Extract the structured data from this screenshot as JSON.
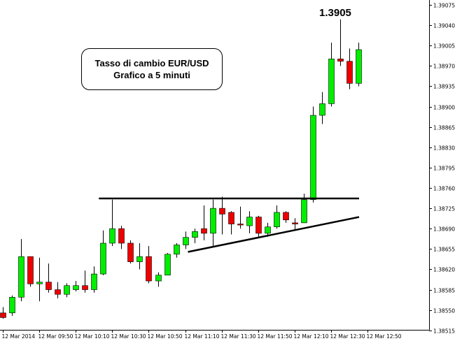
{
  "annotation": {
    "line1": "Tasso di cambio EUR/USD",
    "line2": "Grafico a 5 minuti"
  },
  "peak": {
    "label": "1.3905",
    "value": 1.3905
  },
  "colors": {
    "up": "#00ee00",
    "down": "#ee0000",
    "wick": "#000000",
    "lines": "#000000"
  },
  "chart_data": {
    "type": "candlestick",
    "title": "",
    "ylim": [
      1.385,
      1.39075
    ],
    "y_ticks": [
      "1.39075",
      "1.39040",
      "1.39005",
      "1.38970",
      "1.38935",
      "1.38900",
      "1.38865",
      "1.38830",
      "1.38795",
      "1.38760",
      "1.38725",
      "1.38690",
      "1.38655",
      "1.38620",
      "1.38585",
      "1.38550",
      "1.38515"
    ],
    "x_ticks": [
      "12 Mar 2014",
      "12 Mar 09:50",
      "12 Mar 10:10",
      "12 Mar 10:30",
      "12 Mar 10:50",
      "12 Mar 11:10",
      "12 Mar 11:30",
      "12 Mar 11:50",
      "12 Mar 12:10",
      "12 Mar 12:30",
      "12 Mar 12:50"
    ],
    "candles": [
      {
        "o": 1.38545,
        "h": 1.38555,
        "l": 1.38535,
        "c": 1.38537
      },
      {
        "o": 1.38545,
        "h": 1.38575,
        "l": 1.3854,
        "c": 1.38572
      },
      {
        "o": 1.38572,
        "h": 1.38672,
        "l": 1.38565,
        "c": 1.38642
      },
      {
        "o": 1.38642,
        "h": 1.38642,
        "l": 1.3859,
        "c": 1.38595
      },
      {
        "o": 1.38595,
        "h": 1.3864,
        "l": 1.38565,
        "c": 1.38598
      },
      {
        "o": 1.38598,
        "h": 1.3863,
        "l": 1.3858,
        "c": 1.38585
      },
      {
        "o": 1.38585,
        "h": 1.38598,
        "l": 1.3857,
        "c": 1.38577
      },
      {
        "o": 1.38577,
        "h": 1.38596,
        "l": 1.38572,
        "c": 1.38592
      },
      {
        "o": 1.38585,
        "h": 1.386,
        "l": 1.38582,
        "c": 1.38592
      },
      {
        "o": 1.38592,
        "h": 1.38618,
        "l": 1.3858,
        "c": 1.38585
      },
      {
        "o": 1.38585,
        "h": 1.38625,
        "l": 1.3858,
        "c": 1.38612
      },
      {
        "o": 1.38612,
        "h": 1.38687,
        "l": 1.3861,
        "c": 1.38665
      },
      {
        "o": 1.38665,
        "h": 1.3874,
        "l": 1.3866,
        "c": 1.3869
      },
      {
        "o": 1.3869,
        "h": 1.38695,
        "l": 1.38655,
        "c": 1.38665
      },
      {
        "o": 1.38665,
        "h": 1.3867,
        "l": 1.3863,
        "c": 1.38633
      },
      {
        "o": 1.38633,
        "h": 1.38665,
        "l": 1.3862,
        "c": 1.38642
      },
      {
        "o": 1.38642,
        "h": 1.3866,
        "l": 1.38596,
        "c": 1.386
      },
      {
        "o": 1.386,
        "h": 1.38615,
        "l": 1.3859,
        "c": 1.3861
      },
      {
        "o": 1.3861,
        "h": 1.38648,
        "l": 1.3861,
        "c": 1.38646
      },
      {
        "o": 1.38646,
        "h": 1.38665,
        "l": 1.3864,
        "c": 1.38662
      },
      {
        "o": 1.38662,
        "h": 1.38685,
        "l": 1.38655,
        "c": 1.38675
      },
      {
        "o": 1.38675,
        "h": 1.3869,
        "l": 1.38665,
        "c": 1.38685
      },
      {
        "o": 1.3869,
        "h": 1.3873,
        "l": 1.3867,
        "c": 1.38682
      },
      {
        "o": 1.38682,
        "h": 1.3874,
        "l": 1.3866,
        "c": 1.38725
      },
      {
        "o": 1.38725,
        "h": 1.38745,
        "l": 1.3868,
        "c": 1.38715
      },
      {
        "o": 1.38718,
        "h": 1.3872,
        "l": 1.3868,
        "c": 1.38698
      },
      {
        "o": 1.38698,
        "h": 1.38728,
        "l": 1.3869,
        "c": 1.38697
      },
      {
        "o": 1.38695,
        "h": 1.3872,
        "l": 1.38682,
        "c": 1.3871
      },
      {
        "o": 1.3871,
        "h": 1.38712,
        "l": 1.38675,
        "c": 1.38682
      },
      {
        "o": 1.38682,
        "h": 1.387,
        "l": 1.38676,
        "c": 1.38693
      },
      {
        "o": 1.38693,
        "h": 1.3873,
        "l": 1.3869,
        "c": 1.38718
      },
      {
        "o": 1.38718,
        "h": 1.3872,
        "l": 1.387,
        "c": 1.38705
      },
      {
        "o": 1.387,
        "h": 1.38708,
        "l": 1.38688,
        "c": 1.38698
      },
      {
        "o": 1.387,
        "h": 1.3875,
        "l": 1.387,
        "c": 1.3874
      },
      {
        "o": 1.3874,
        "h": 1.389,
        "l": 1.38735,
        "c": 1.38885
      },
      {
        "o": 1.38885,
        "h": 1.38925,
        "l": 1.3887,
        "c": 1.38905
      },
      {
        "o": 1.38905,
        "h": 1.3901,
        "l": 1.389,
        "c": 1.38982
      },
      {
        "o": 1.38982,
        "h": 1.3905,
        "l": 1.3897,
        "c": 1.38978
      },
      {
        "o": 1.38978,
        "h": 1.39,
        "l": 1.3893,
        "c": 1.3894
      },
      {
        "o": 1.3894,
        "h": 1.3901,
        "l": 1.38935,
        "c": 1.38998
      }
    ],
    "resistance": {
      "value": 1.38742,
      "from_candle": 11.3,
      "to_candle": 38.6
    },
    "trendline": {
      "from_candle": 20.3,
      "from_value": 1.3865,
      "to_candle": 38.6,
      "to_value": 1.3871
    }
  }
}
